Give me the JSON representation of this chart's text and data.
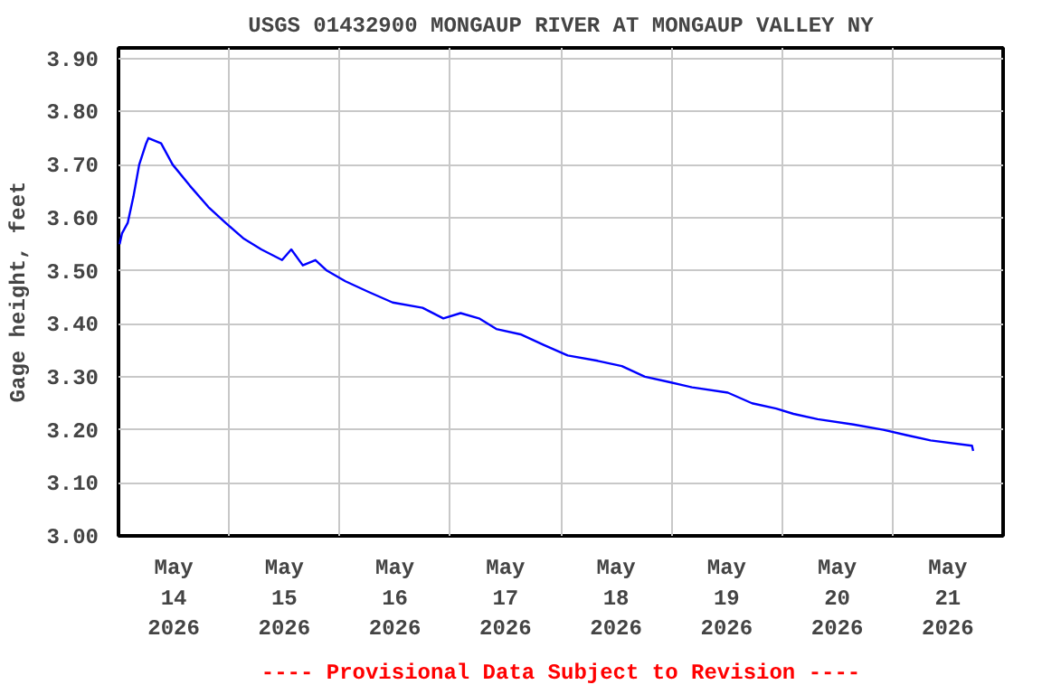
{
  "chart_data": {
    "type": "line",
    "title": "USGS 01432900 MONGAUP RIVER AT MONGAUP VALLEY NY",
    "ylabel": "Gage height, feet",
    "x": [
      "2026-05-14T00:15",
      "2026-05-14T00:45",
      "2026-05-14T02:00",
      "2026-05-14T03:15",
      "2026-05-14T04:30",
      "2026-05-14T06:00",
      "2026-05-14T06:30",
      "2026-05-14T09:15",
      "2026-05-14T11:45",
      "2026-05-14T15:30",
      "2026-05-14T19:30",
      "2026-05-14T23:15",
      "2026-05-15T03:15",
      "2026-05-15T07:00",
      "2026-05-15T11:30",
      "2026-05-15T13:30",
      "2026-05-15T16:00",
      "2026-05-15T18:45",
      "2026-05-15T21:15",
      "2026-05-16T01:15",
      "2026-05-16T06:15",
      "2026-05-16T11:30",
      "2026-05-16T18:00",
      "2026-05-16T22:30",
      "2026-05-17T02:15",
      "2026-05-17T06:15",
      "2026-05-17T10:00",
      "2026-05-17T15:15",
      "2026-05-17T20:15",
      "2026-05-18T01:30",
      "2026-05-18T08:00",
      "2026-05-18T13:15",
      "2026-05-18T18:15",
      "2026-05-18T23:30",
      "2026-05-19T04:30",
      "2026-05-19T12:15",
      "2026-05-19T17:30",
      "2026-05-19T22:45",
      "2026-05-20T02:30",
      "2026-05-20T07:45",
      "2026-05-20T15:30",
      "2026-05-20T22:00",
      "2026-05-21T03:00",
      "2026-05-21T08:15",
      "2026-05-21T17:15",
      "2026-05-21T17:30"
    ],
    "series": [
      {
        "color": "#0000ff",
        "values": [
          3.55,
          3.57,
          3.59,
          3.64,
          3.7,
          3.74,
          3.75,
          3.74,
          3.7,
          3.66,
          3.62,
          3.59,
          3.56,
          3.54,
          3.52,
          3.54,
          3.51,
          3.52,
          3.5,
          3.48,
          3.46,
          3.44,
          3.43,
          3.41,
          3.42,
          3.41,
          3.39,
          3.38,
          3.36,
          3.34,
          3.33,
          3.32,
          3.3,
          3.29,
          3.28,
          3.27,
          3.25,
          3.24,
          3.23,
          3.22,
          3.21,
          3.2,
          3.19,
          3.18,
          3.17,
          3.16
        ]
      }
    ],
    "xlim": [
      "2026-05-14T00:00",
      "2026-05-22T00:00"
    ],
    "xticks": [
      {
        "value": "2026-05-14T12:00",
        "label": "May\n14\n2026"
      },
      {
        "value": "2026-05-15T00:00",
        "label": null
      },
      {
        "value": "2026-05-15T12:00",
        "label": "May\n15\n2026"
      },
      {
        "value": "2026-05-16T00:00",
        "label": null
      },
      {
        "value": "2026-05-16T12:00",
        "label": "May\n16\n2026"
      },
      {
        "value": "2026-05-17T00:00",
        "label": null
      },
      {
        "value": "2026-05-17T12:00",
        "label": "May\n17\n2026"
      },
      {
        "value": "2026-05-18T00:00",
        "label": null
      },
      {
        "value": "2026-05-18T12:00",
        "label": "May\n18\n2026"
      },
      {
        "value": "2026-05-19T00:00",
        "label": null
      },
      {
        "value": "2026-05-19T12:00",
        "label": "May\n19\n2026"
      },
      {
        "value": "2026-05-20T00:00",
        "label": null
      },
      {
        "value": "2026-05-20T12:00",
        "label": "May\n20\n2026"
      },
      {
        "value": "2026-05-21T00:00",
        "label": null
      },
      {
        "value": "2026-05-21T12:00",
        "label": "May\n21\n2026"
      }
    ],
    "ylim": [
      3.0,
      3.92
    ],
    "yticks": [
      {
        "value": 3.0,
        "label": "3.00"
      },
      {
        "value": 3.1,
        "label": "3.10"
      },
      {
        "value": 3.2,
        "label": "3.20"
      },
      {
        "value": 3.3,
        "label": "3.30"
      },
      {
        "value": 3.4,
        "label": "3.40"
      },
      {
        "value": 3.5,
        "label": "3.50"
      },
      {
        "value": 3.6,
        "label": "3.60"
      },
      {
        "value": 3.7,
        "label": "3.70"
      },
      {
        "value": 3.8,
        "label": "3.80"
      },
      {
        "value": 3.9,
        "label": "3.90"
      }
    ],
    "grid": true,
    "marker": "none",
    "line_style": "solid",
    "annotations": [
      "---- Provisional Data Subject to Revision ----"
    ]
  }
}
